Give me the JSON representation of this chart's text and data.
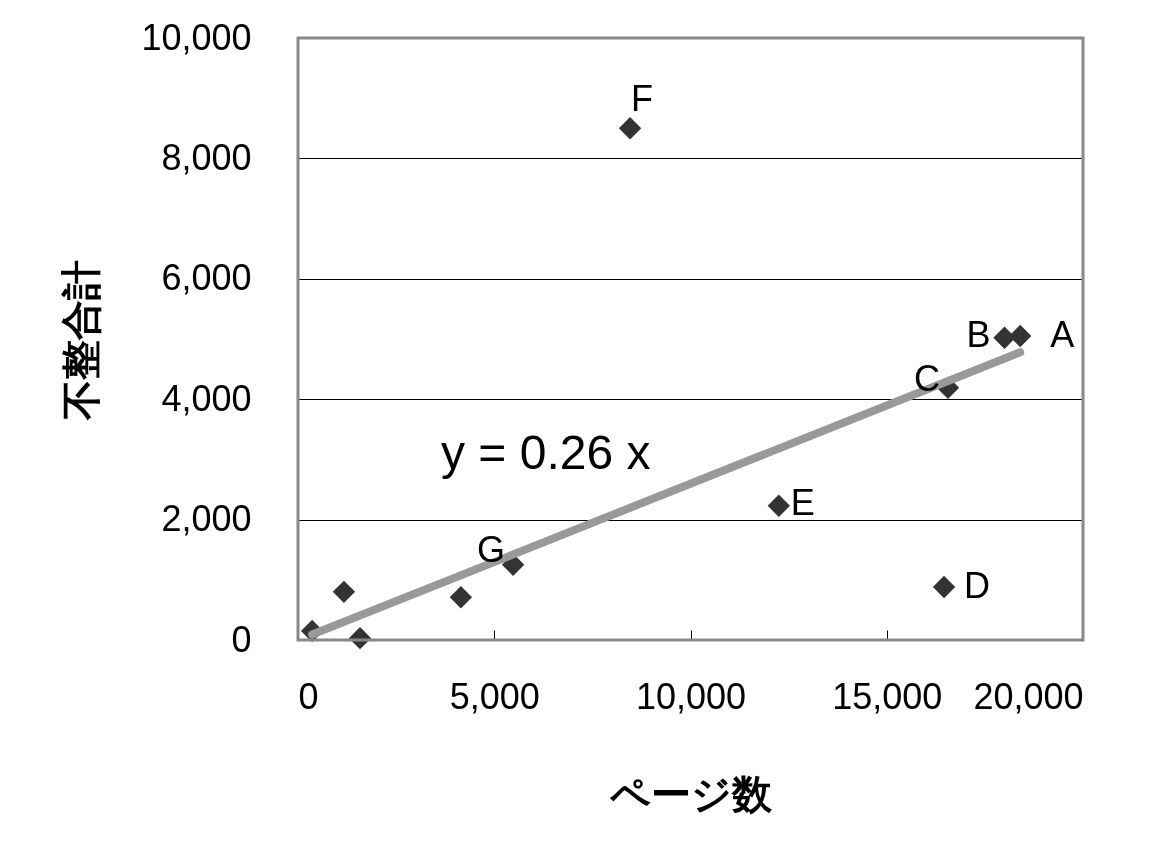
{
  "chart_data": {
    "type": "scatter",
    "xlabel": "ページ数",
    "ylabel": "不整合計",
    "xlim": [
      0,
      20000
    ],
    "xticks": [
      {
        "value": 0,
        "label": "0"
      },
      {
        "value": 5000,
        "label": "5,000"
      },
      {
        "value": 10000,
        "label": "10,000"
      },
      {
        "value": 15000,
        "label": "15,000"
      },
      {
        "value": 20000,
        "label": "20,000"
      }
    ],
    "ylim": [
      0,
      10000
    ],
    "yticks": [
      {
        "value": 0,
        "label": "0"
      },
      {
        "value": 2000,
        "label": "2,000"
      },
      {
        "value": 4000,
        "label": "4,000"
      },
      {
        "value": 6000,
        "label": "6,000"
      },
      {
        "value": 8000,
        "label": "8,000"
      },
      {
        "value": 10000,
        "label": "10,000"
      }
    ],
    "grid": "y",
    "series": [
      {
        "color": "#333333",
        "marker": "diamond",
        "x": [
          18400,
          18000,
          16560,
          16460,
          12250,
          8460,
          5480,
          4150,
          1170,
          1580,
          360
        ],
        "values": [
          5050,
          5020,
          4190,
          880,
          2230,
          8500,
          1250,
          710,
          800,
          30,
          150
        ]
      },
      {
        "type": "line",
        "color": "#999999",
        "x": [
          360,
          18400
        ],
        "values": [
          90,
          4780
        ]
      }
    ],
    "annotations": [
      {
        "text": "A",
        "x": 18400,
        "y": 5050
      },
      {
        "text": "B",
        "x": 18000,
        "y": 5020
      },
      {
        "text": "C",
        "x": 16560,
        "y": 4190
      },
      {
        "text": "D",
        "x": 16460,
        "y": 880
      },
      {
        "text": "E",
        "x": 12250,
        "y": 2230
      },
      {
        "text": "F",
        "x": 8460,
        "y": 8500
      },
      {
        "text": "G",
        "x": 5480,
        "y": 1250
      },
      "y = 0.26 x"
    ]
  }
}
